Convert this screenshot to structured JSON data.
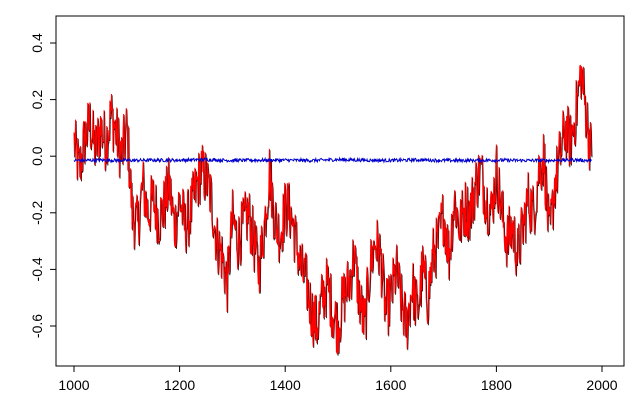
{
  "chart_data": {
    "type": "line",
    "title": "",
    "xlabel": "",
    "ylabel": "",
    "xlim": [
      1000,
      2000
    ],
    "ylim": [
      -0.7,
      0.45
    ],
    "x_ticks": [
      1000,
      1200,
      1400,
      1600,
      1800,
      2000
    ],
    "y_ticks": [
      -0.6,
      -0.4,
      -0.2,
      0.0,
      0.2,
      0.4
    ],
    "x_tick_labels": [
      "1000",
      "1200",
      "1400",
      "1600",
      "1800",
      "2000"
    ],
    "y_tick_labels": [
      "-0.6",
      "-0.4",
      "-0.2",
      "0.0",
      "0.2",
      "0.4"
    ],
    "grid": false,
    "legend": "none",
    "series": [
      {
        "color": "#ff0000",
        "shadow_color": "#000000",
        "x": [
          1000,
          1010,
          1020,
          1030,
          1040,
          1050,
          1060,
          1070,
          1080,
          1090,
          1100,
          1110,
          1120,
          1130,
          1140,
          1150,
          1160,
          1170,
          1180,
          1190,
          1200,
          1210,
          1220,
          1230,
          1240,
          1250,
          1260,
          1270,
          1280,
          1290,
          1300,
          1310,
          1320,
          1330,
          1340,
          1350,
          1360,
          1370,
          1380,
          1390,
          1400,
          1410,
          1420,
          1430,
          1440,
          1450,
          1460,
          1470,
          1480,
          1490,
          1500,
          1510,
          1520,
          1530,
          1540,
          1550,
          1560,
          1570,
          1580,
          1590,
          1600,
          1610,
          1620,
          1630,
          1640,
          1650,
          1660,
          1670,
          1680,
          1690,
          1700,
          1710,
          1720,
          1730,
          1740,
          1750,
          1760,
          1770,
          1780,
          1790,
          1800,
          1810,
          1820,
          1830,
          1840,
          1850,
          1860,
          1870,
          1880,
          1890,
          1900,
          1910,
          1920,
          1930,
          1940,
          1950,
          1960,
          1970,
          1980
        ],
        "y": [
          0.05,
          -0.05,
          0.06,
          0.12,
          0.02,
          0.1,
          0.05,
          0.15,
          0.08,
          0.0,
          0.1,
          -0.2,
          -0.25,
          -0.1,
          -0.2,
          -0.15,
          -0.22,
          -0.18,
          -0.1,
          -0.25,
          -0.15,
          -0.25,
          -0.2,
          -0.12,
          -0.05,
          -0.08,
          -0.15,
          -0.3,
          -0.35,
          -0.45,
          -0.22,
          -0.3,
          -0.25,
          -0.2,
          -0.3,
          -0.4,
          -0.25,
          -0.05,
          -0.22,
          -0.28,
          -0.18,
          -0.2,
          -0.3,
          -0.4,
          -0.45,
          -0.55,
          -0.6,
          -0.5,
          -0.45,
          -0.55,
          -0.6,
          -0.5,
          -0.45,
          -0.35,
          -0.5,
          -0.6,
          -0.4,
          -0.3,
          -0.35,
          -0.55,
          -0.5,
          -0.4,
          -0.52,
          -0.6,
          -0.45,
          -0.55,
          -0.4,
          -0.5,
          -0.35,
          -0.3,
          -0.2,
          -0.35,
          -0.15,
          -0.25,
          -0.18,
          -0.2,
          -0.1,
          -0.05,
          -0.15,
          -0.2,
          -0.05,
          -0.2,
          -0.3,
          -0.25,
          -0.35,
          -0.25,
          -0.15,
          -0.2,
          -0.05,
          0.0,
          -0.3,
          -0.1,
          0.0,
          0.1,
          0.05,
          0.15,
          0.3,
          0.15,
          0.0
        ]
      },
      {
        "color": "#0000cc",
        "x": [
          1000,
          1050,
          1100,
          1150,
          1200,
          1250,
          1300,
          1350,
          1400,
          1450,
          1500,
          1550,
          1600,
          1650,
          1700,
          1750,
          1800,
          1850,
          1900,
          1950,
          1980
        ],
        "y": [
          -0.015,
          -0.014,
          -0.015,
          -0.014,
          -0.014,
          -0.012,
          -0.015,
          -0.014,
          -0.014,
          -0.015,
          -0.012,
          -0.014,
          -0.015,
          -0.013,
          -0.015,
          -0.015,
          -0.014,
          -0.015,
          -0.015,
          -0.013,
          -0.016
        ]
      }
    ]
  }
}
